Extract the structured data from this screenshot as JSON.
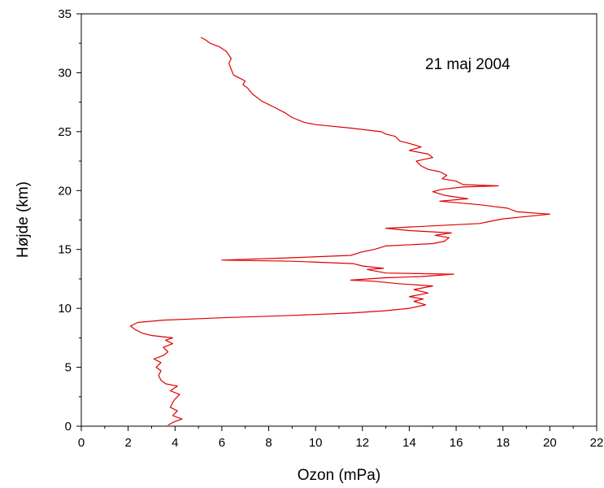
{
  "chart_data": {
    "type": "line",
    "title": "",
    "annotation": "21 maj 2004",
    "xlabel": "Ozon (mPa)",
    "ylabel": "Højde (km)",
    "xlim": [
      0,
      22
    ],
    "ylim": [
      0,
      35
    ],
    "x_ticks": [
      0,
      2,
      4,
      6,
      8,
      10,
      12,
      14,
      16,
      18,
      20,
      22
    ],
    "y_ticks": [
      0,
      5,
      10,
      15,
      20,
      25,
      30,
      35
    ],
    "grid": false,
    "legend": "none",
    "series": [
      {
        "color": "#e00000",
        "points": [
          [
            3.7,
            0.1
          ],
          [
            4.0,
            0.4
          ],
          [
            4.3,
            0.6
          ],
          [
            3.9,
            0.9
          ],
          [
            4.1,
            1.3
          ],
          [
            3.8,
            1.6
          ],
          [
            3.9,
            2.0
          ],
          [
            4.0,
            2.3
          ],
          [
            4.2,
            2.7
          ],
          [
            3.8,
            3.0
          ],
          [
            4.1,
            3.4
          ],
          [
            3.6,
            3.6
          ],
          [
            3.4,
            3.9
          ],
          [
            3.3,
            4.3
          ],
          [
            3.4,
            4.7
          ],
          [
            3.2,
            5.0
          ],
          [
            3.4,
            5.4
          ],
          [
            3.1,
            5.7
          ],
          [
            3.5,
            6.0
          ],
          [
            3.7,
            6.3
          ],
          [
            3.5,
            6.7
          ],
          [
            3.9,
            7.0
          ],
          [
            3.6,
            7.3
          ],
          [
            3.9,
            7.5
          ],
          [
            3.0,
            7.7
          ],
          [
            2.6,
            7.9
          ],
          [
            2.3,
            8.2
          ],
          [
            2.1,
            8.5
          ],
          [
            2.4,
            8.8
          ],
          [
            3.5,
            9.0
          ],
          [
            6.0,
            9.2
          ],
          [
            9.0,
            9.4
          ],
          [
            11.5,
            9.6
          ],
          [
            13.0,
            9.8
          ],
          [
            14.0,
            10.0
          ],
          [
            14.7,
            10.3
          ],
          [
            14.2,
            10.6
          ],
          [
            14.6,
            10.8
          ],
          [
            14.0,
            11.0
          ],
          [
            14.8,
            11.3
          ],
          [
            14.2,
            11.6
          ],
          [
            15.0,
            11.9
          ],
          [
            13.5,
            12.1
          ],
          [
            12.5,
            12.3
          ],
          [
            11.5,
            12.4
          ],
          [
            13.0,
            12.6
          ],
          [
            14.5,
            12.7
          ],
          [
            15.9,
            12.9
          ],
          [
            13.0,
            13.0
          ],
          [
            12.2,
            13.3
          ],
          [
            12.9,
            13.4
          ],
          [
            12.0,
            13.6
          ],
          [
            11.6,
            13.8
          ],
          [
            9.0,
            14.0
          ],
          [
            6.0,
            14.1
          ],
          [
            9.0,
            14.3
          ],
          [
            11.5,
            14.5
          ],
          [
            12.0,
            14.8
          ],
          [
            12.5,
            15.0
          ],
          [
            13.0,
            15.3
          ],
          [
            15.0,
            15.5
          ],
          [
            15.5,
            15.7
          ],
          [
            15.7,
            16.0
          ],
          [
            15.1,
            16.2
          ],
          [
            15.8,
            16.4
          ],
          [
            14.0,
            16.6
          ],
          [
            13.0,
            16.8
          ],
          [
            15.0,
            17.0
          ],
          [
            17.0,
            17.2
          ],
          [
            17.5,
            17.4
          ],
          [
            18.0,
            17.6
          ],
          [
            19.0,
            17.8
          ],
          [
            20.0,
            18.0
          ],
          [
            18.6,
            18.2
          ],
          [
            18.2,
            18.5
          ],
          [
            17.0,
            18.8
          ],
          [
            15.3,
            19.1
          ],
          [
            16.5,
            19.3
          ],
          [
            15.5,
            19.6
          ],
          [
            15.0,
            19.9
          ],
          [
            15.4,
            20.1
          ],
          [
            16.3,
            20.3
          ],
          [
            17.8,
            20.4
          ],
          [
            16.3,
            20.5
          ],
          [
            16.0,
            20.8
          ],
          [
            15.4,
            21.0
          ],
          [
            15.6,
            21.3
          ],
          [
            15.3,
            21.6
          ],
          [
            14.8,
            21.8
          ],
          [
            14.5,
            22.1
          ],
          [
            14.3,
            22.5
          ],
          [
            15.0,
            22.8
          ],
          [
            14.8,
            23.1
          ],
          [
            14.0,
            23.4
          ],
          [
            14.5,
            23.7
          ],
          [
            14.0,
            24.0
          ],
          [
            13.6,
            24.2
          ],
          [
            13.4,
            24.6
          ],
          [
            13.0,
            24.8
          ],
          [
            12.8,
            25.0
          ],
          [
            11.5,
            25.3
          ],
          [
            10.0,
            25.6
          ],
          [
            9.5,
            25.8
          ],
          [
            9.0,
            26.2
          ],
          [
            8.7,
            26.6
          ],
          [
            8.2,
            27.1
          ],
          [
            7.7,
            27.6
          ],
          [
            7.3,
            28.2
          ],
          [
            7.1,
            28.7
          ],
          [
            6.9,
            29.0
          ],
          [
            7.0,
            29.3
          ],
          [
            6.8,
            29.5
          ],
          [
            6.5,
            29.8
          ],
          [
            6.4,
            30.3
          ],
          [
            6.3,
            30.8
          ],
          [
            6.4,
            31.2
          ],
          [
            6.2,
            31.8
          ],
          [
            5.9,
            32.2
          ],
          [
            5.5,
            32.5
          ],
          [
            5.3,
            32.8
          ],
          [
            5.1,
            33.0
          ]
        ]
      }
    ]
  }
}
